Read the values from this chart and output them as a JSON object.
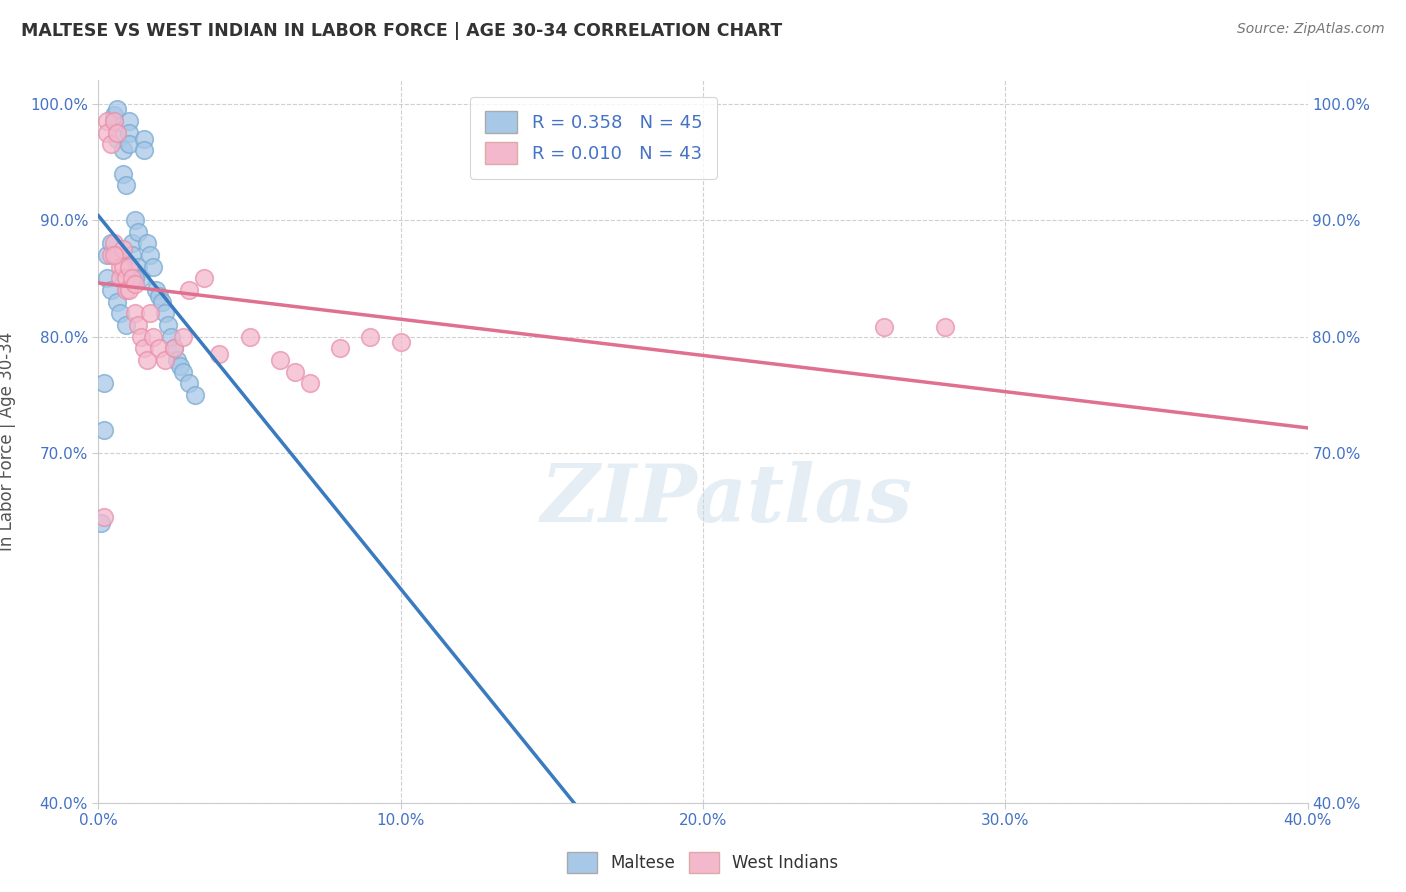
{
  "title": "MALTESE VS WEST INDIAN IN LABOR FORCE | AGE 30-34 CORRELATION CHART",
  "source_text": "Source: ZipAtlas.com",
  "ylabel": "In Labor Force | Age 30-34",
  "xlim": [
    0.0,
    0.4
  ],
  "ylim": [
    0.4,
    1.02
  ],
  "ytick_values": [
    0.4,
    0.7,
    0.8,
    0.9,
    1.0
  ],
  "ytick_labels": [
    "40.0%",
    "70.0%",
    "80.0%",
    "90.0%",
    "100.0%"
  ],
  "xtick_values": [
    0.0,
    0.1,
    0.2,
    0.3,
    0.4
  ],
  "xtick_labels": [
    "0.0%",
    "10.0%",
    "20.0%",
    "30.0%",
    "40.0%"
  ],
  "watermark_text": "ZIPatlas",
  "maltese_color": "#a8c8e8",
  "westindian_color": "#f4b8cc",
  "maltese_edge_color": "#7aabcf",
  "westindian_edge_color": "#e890aa",
  "maltese_line_color": "#3a7abf",
  "westindian_line_color": "#e07090",
  "background_color": "#ffffff",
  "grid_color": "#d0d0d0",
  "maltese_x": [
    0.001,
    0.002,
    0.003,
    0.004,
    0.005,
    0.005,
    0.006,
    0.006,
    0.007,
    0.008,
    0.008,
    0.009,
    0.01,
    0.01,
    0.01,
    0.011,
    0.011,
    0.012,
    0.013,
    0.013,
    0.014,
    0.015,
    0.015,
    0.016,
    0.017,
    0.018,
    0.019,
    0.02,
    0.021,
    0.022,
    0.023,
    0.024,
    0.025,
    0.026,
    0.027,
    0.028,
    0.03,
    0.032,
    0.003,
    0.004,
    0.006,
    0.007,
    0.009,
    0.012,
    0.002
  ],
  "maltese_y": [
    0.64,
    0.76,
    0.87,
    0.88,
    0.985,
    0.99,
    0.995,
    0.97,
    0.87,
    0.96,
    0.94,
    0.93,
    0.985,
    0.975,
    0.965,
    0.88,
    0.87,
    0.9,
    0.89,
    0.86,
    0.85,
    0.97,
    0.96,
    0.88,
    0.87,
    0.86,
    0.84,
    0.835,
    0.83,
    0.82,
    0.81,
    0.8,
    0.79,
    0.78,
    0.775,
    0.77,
    0.76,
    0.75,
    0.85,
    0.84,
    0.83,
    0.82,
    0.81,
    0.85,
    0.72
  ],
  "westindian_x": [
    0.002,
    0.003,
    0.003,
    0.004,
    0.004,
    0.005,
    0.005,
    0.006,
    0.006,
    0.007,
    0.007,
    0.008,
    0.008,
    0.009,
    0.009,
    0.01,
    0.01,
    0.011,
    0.012,
    0.012,
    0.013,
    0.014,
    0.015,
    0.016,
    0.017,
    0.018,
    0.02,
    0.022,
    0.025,
    0.028,
    0.03,
    0.035,
    0.04,
    0.05,
    0.06,
    0.065,
    0.07,
    0.08,
    0.09,
    0.1,
    0.26,
    0.28,
    0.005
  ],
  "westindian_y": [
    0.645,
    0.985,
    0.975,
    0.965,
    0.87,
    0.985,
    0.88,
    0.975,
    0.87,
    0.86,
    0.85,
    0.875,
    0.86,
    0.85,
    0.84,
    0.86,
    0.84,
    0.85,
    0.845,
    0.82,
    0.81,
    0.8,
    0.79,
    0.78,
    0.82,
    0.8,
    0.79,
    0.78,
    0.79,
    0.8,
    0.84,
    0.85,
    0.785,
    0.8,
    0.78,
    0.77,
    0.76,
    0.79,
    0.8,
    0.795,
    0.808,
    0.808,
    0.87
  ]
}
